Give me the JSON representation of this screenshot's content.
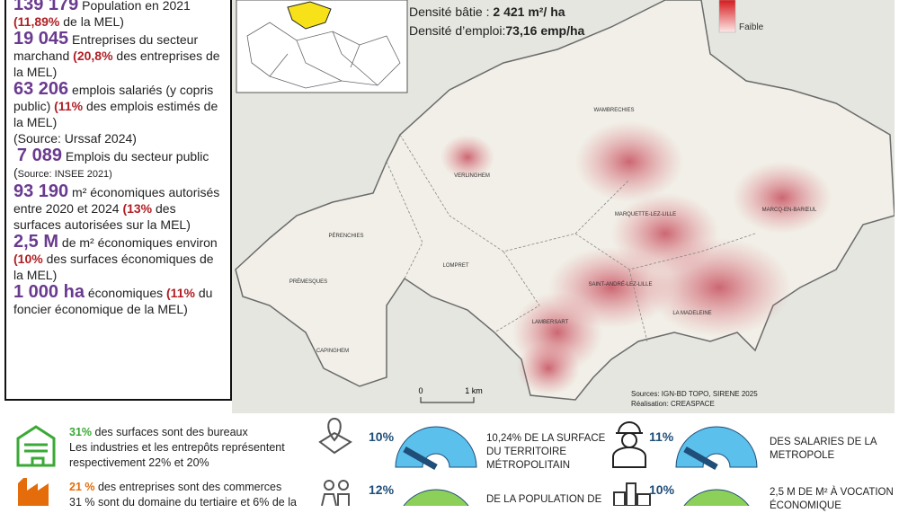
{
  "stats": [
    [
      "139 179",
      " Population en 2021",
      "(11,89%",
      " de la MEL)"
    ],
    [
      "19 045",
      " Entreprises du secteur marchand ",
      "(20,8%",
      " des entreprises de la MEL)"
    ],
    [
      "63 206",
      " emplois salariés (y copris public) ",
      "(11%",
      " des emplois estimés de la MEL)",
      "(Source: Urssaf 2024)"
    ],
    [
      "7 089",
      " Emplois du secteur public (",
      "Source: INSEE 2021)"
    ],
    [
      "93 190",
      " m² économiques autorisés entre 2020 et 2024 ",
      "(13%",
      " des surfaces autorisées sur la MEL)"
    ],
    [
      "2,5 M",
      " de m² économiques environ ",
      "(10%",
      " des surfaces économiques de la MEL)"
    ],
    [
      "1 000 ha",
      " économiques ",
      "(11%",
      " du foncier économique de la MEL)"
    ]
  ],
  "map": {
    "density_built": [
      "Densité bâtie : ",
      "2 421 m²/ ha"
    ],
    "density_jobs": [
      "Densité d’emploi:",
      "73,16 emp/ha"
    ],
    "legend_low": "Faible",
    "places": [
      "WAMBRECHIES",
      "VERLINGHEM",
      "PÉRENCHIES",
      "MARQUETTE-LEZ-LILLE",
      "MARCQ-EN-BARŒUL",
      "LOMPRET",
      "PRÉMESQUES",
      "SAINT-ANDRÉ-LEZ-LILLE",
      "LA MADELEINE",
      "LAMBERSART",
      "CAPINGHEM"
    ],
    "scale": [
      "0",
      "1 km"
    ],
    "sources": [
      "Sources: IGN-BD TOPO, SIRENE 2025",
      "Réalisation: CREASPACE"
    ]
  },
  "bottom": {
    "offices": [
      "31%",
      " des surfaces sont des bureaux",
      "Les industries et les entrepôts représentent",
      "respectivement 22% et 20%"
    ],
    "businesses": [
      "21 %",
      " des entreprises sont des commerces",
      "31 % sont du domaine du tertiaire et 6% de la"
    ],
    "gauges": [
      {
        "value": "10%",
        "lines": [
          "10,24% DE LA SURFACE",
          "DU TERRITOIRE",
          "MÉTROPOLITAIN"
        ]
      },
      {
        "value": "12%",
        "lines": [
          "DE LA POPULATION DE"
        ]
      },
      {
        "value": "11%",
        "lines": [
          "DES SALARIES DE LA",
          "METROPOLE"
        ]
      },
      {
        "value": "10%",
        "lines": [
          "2,5 M DE M² À VOCATION",
          "ÉCONOMIQUE"
        ]
      }
    ]
  }
}
